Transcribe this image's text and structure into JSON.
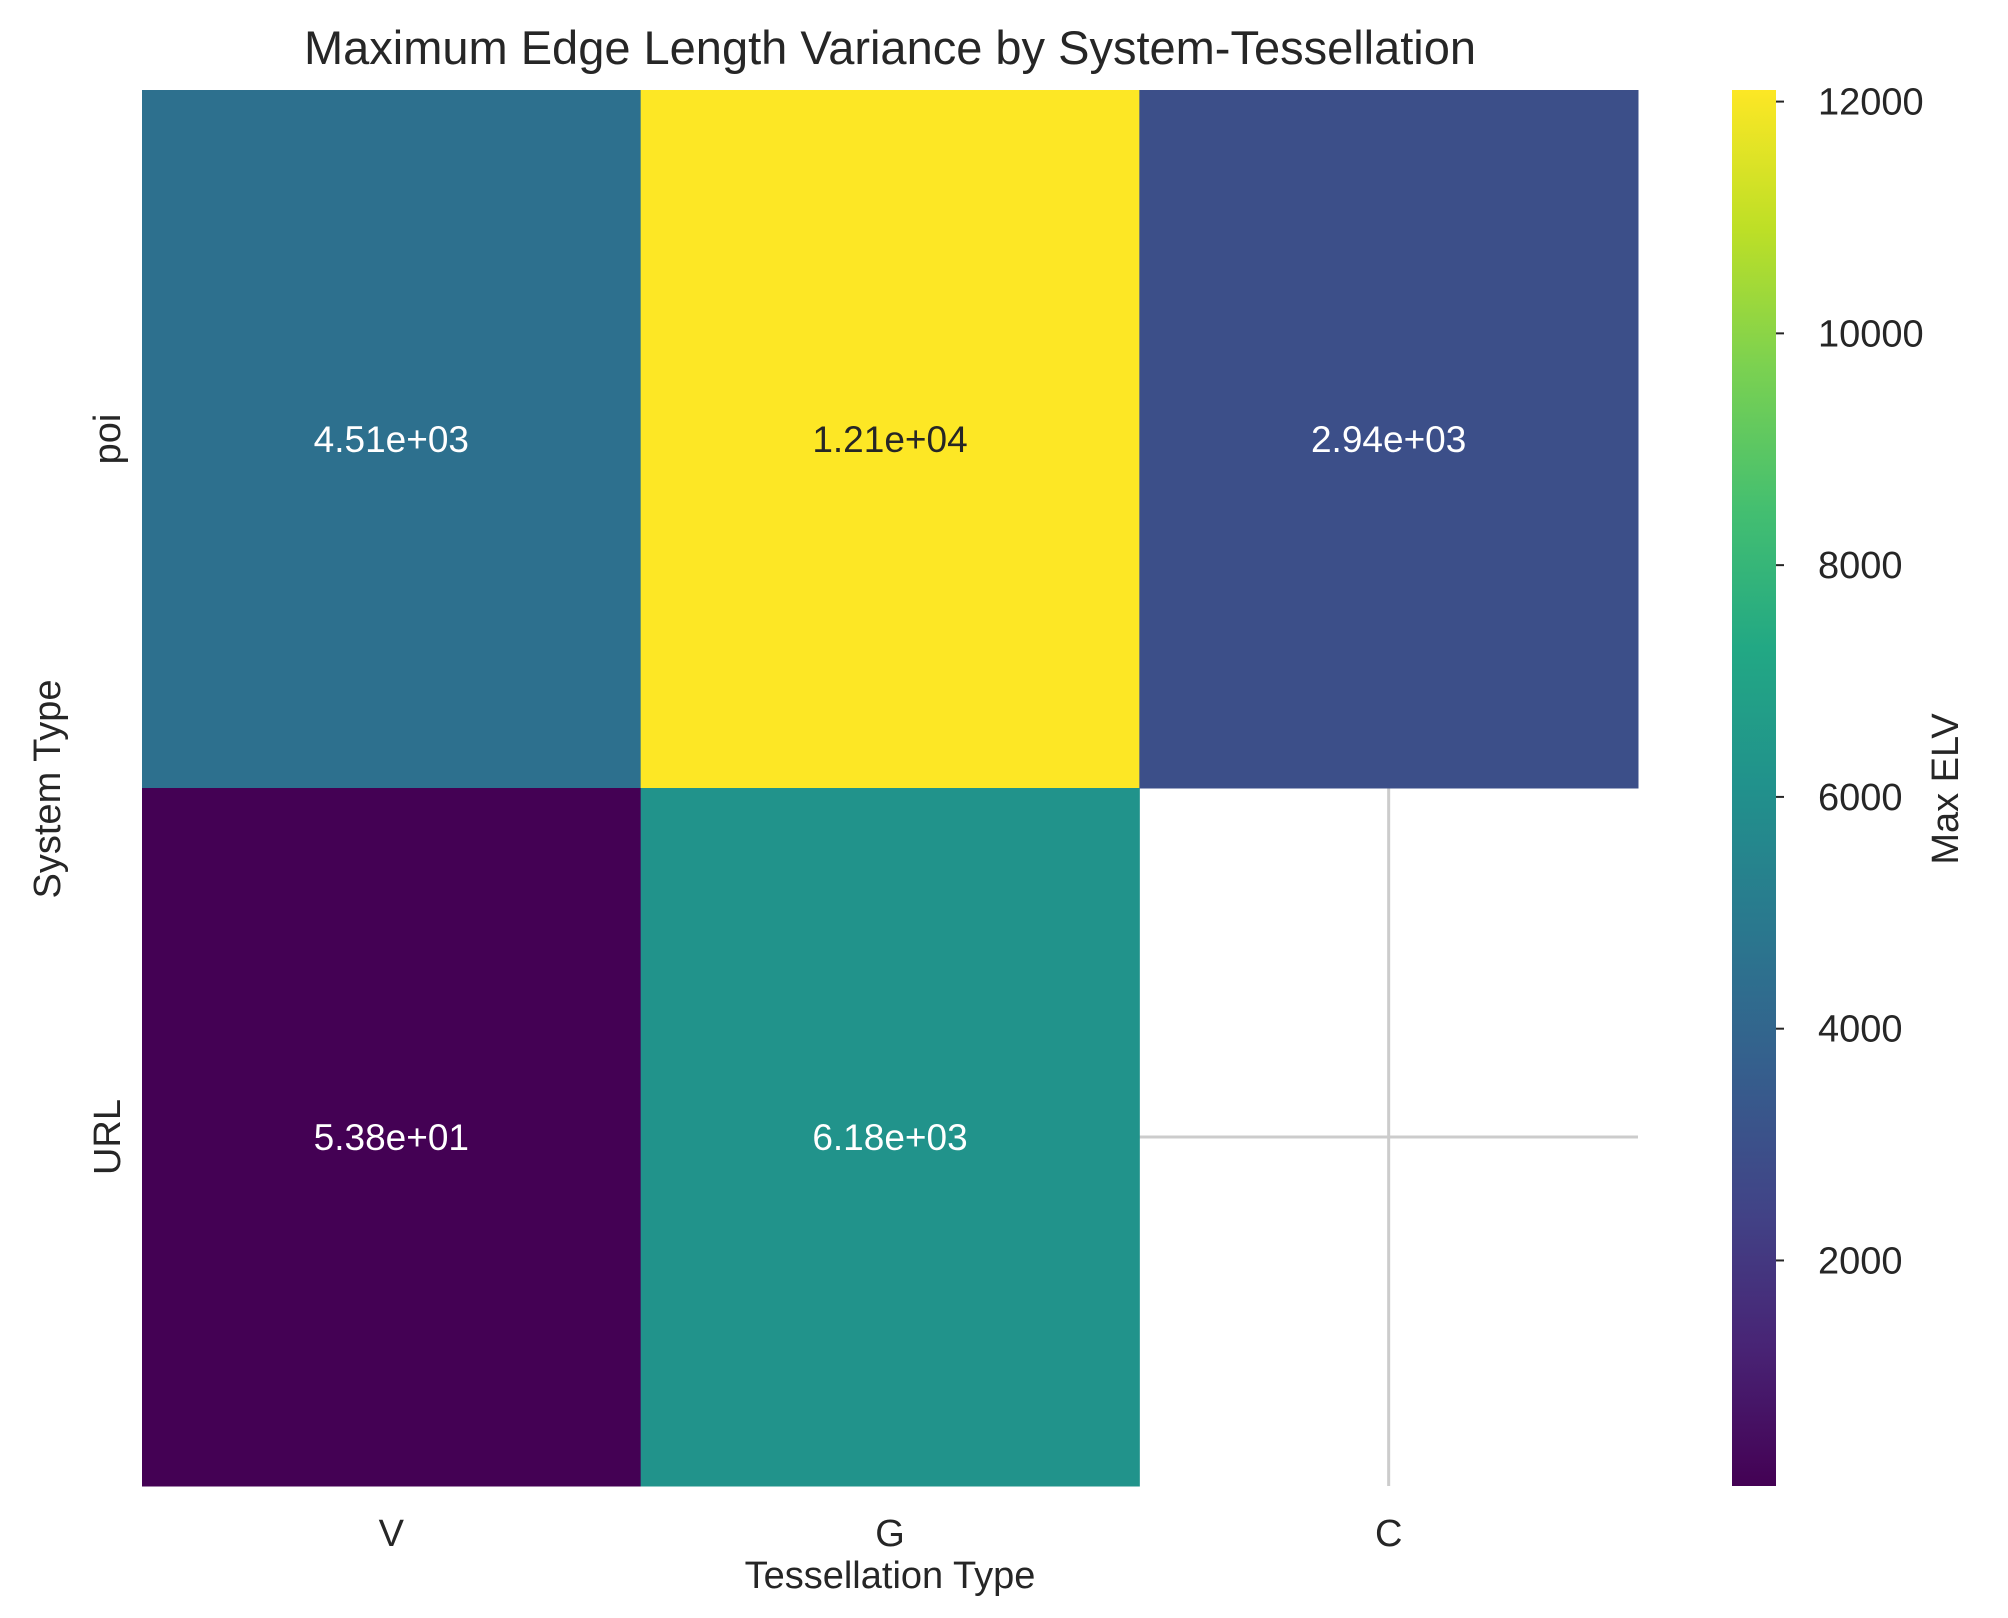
{
  "chart_data": {
    "type": "heatmap",
    "title": "Maximum Edge Length Variance by System-Tessellation",
    "xlabel": "Tessellation Type",
    "ylabel": "System Type",
    "x_categories": [
      "V",
      "G",
      "C"
    ],
    "y_categories": [
      "poi",
      "URL"
    ],
    "values": [
      [
        4510,
        12100,
        2940
      ],
      [
        53.8,
        6180,
        null
      ]
    ],
    "cell_labels": [
      [
        "4.51e+03",
        "1.21e+04",
        "2.94e+03"
      ],
      [
        "5.38e+01",
        "6.18e+03",
        ""
      ]
    ],
    "colorscale": "viridis",
    "color_range": [
      53.8,
      12100
    ],
    "colorbar": {
      "label": "Max ELV",
      "ticks": [
        2000,
        4000,
        6000,
        8000,
        10000,
        12000
      ],
      "tick_labels": [
        "2000",
        "4000",
        "6000",
        "8000",
        "10000",
        "12000"
      ]
    },
    "grid": true,
    "grid_color": "#cccccc"
  }
}
